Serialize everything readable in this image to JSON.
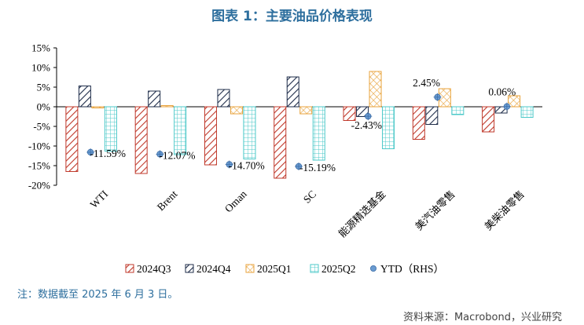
{
  "title": "图表 1：主要油品价格表现",
  "note": "注：数据截至 2025 年 6 月 3 日。",
  "source": "资料来源：Macrobond，兴业研究",
  "chart_data": {
    "type": "bar",
    "categories": [
      "WTI",
      "Brent",
      "Oman",
      "SC",
      "能源精选基金",
      "美汽油零售",
      "美柴油零售"
    ],
    "ylim": [
      -20,
      15
    ],
    "yticks": [
      "15%",
      "10%",
      "5%",
      "0%",
      "-5%",
      "-10%",
      "-15%",
      "-20%"
    ],
    "series": [
      {
        "name": "2024Q3",
        "color": "#c0392b",
        "pattern": "diag-forward",
        "values": [
          -16.5,
          -17.0,
          -14.8,
          -18.2,
          -3.5,
          -8.3,
          -6.4
        ]
      },
      {
        "name": "2024Q4",
        "color": "#1f2d4a",
        "pattern": "diag-forward",
        "values": [
          5.3,
          4.0,
          4.4,
          7.6,
          -2.5,
          -4.5,
          -1.6
        ]
      },
      {
        "name": "2025Q1",
        "color": "#e8a33c",
        "pattern": "crosshatch",
        "values": [
          -0.3,
          0.3,
          -1.8,
          -1.8,
          9.0,
          4.6,
          2.8
        ]
      },
      {
        "name": "2025Q2",
        "color": "#4cc9c9",
        "pattern": "grid",
        "values": [
          -11.3,
          -12.2,
          -13.3,
          -13.6,
          -10.7,
          -2.0,
          -2.7
        ]
      }
    ],
    "ytd": {
      "name": "YTD（RHS）",
      "color": "#6a9bd1",
      "values": [
        -11.59,
        -12.07,
        -14.7,
        -15.19,
        -2.43,
        2.45,
        0.06
      ],
      "labels": [
        "-11.59%",
        "-12.07%",
        "-14.70%",
        "-15.19%",
        "-2.43%",
        "2.45%",
        "0.06%"
      ]
    },
    "legend_position": "bottom"
  }
}
